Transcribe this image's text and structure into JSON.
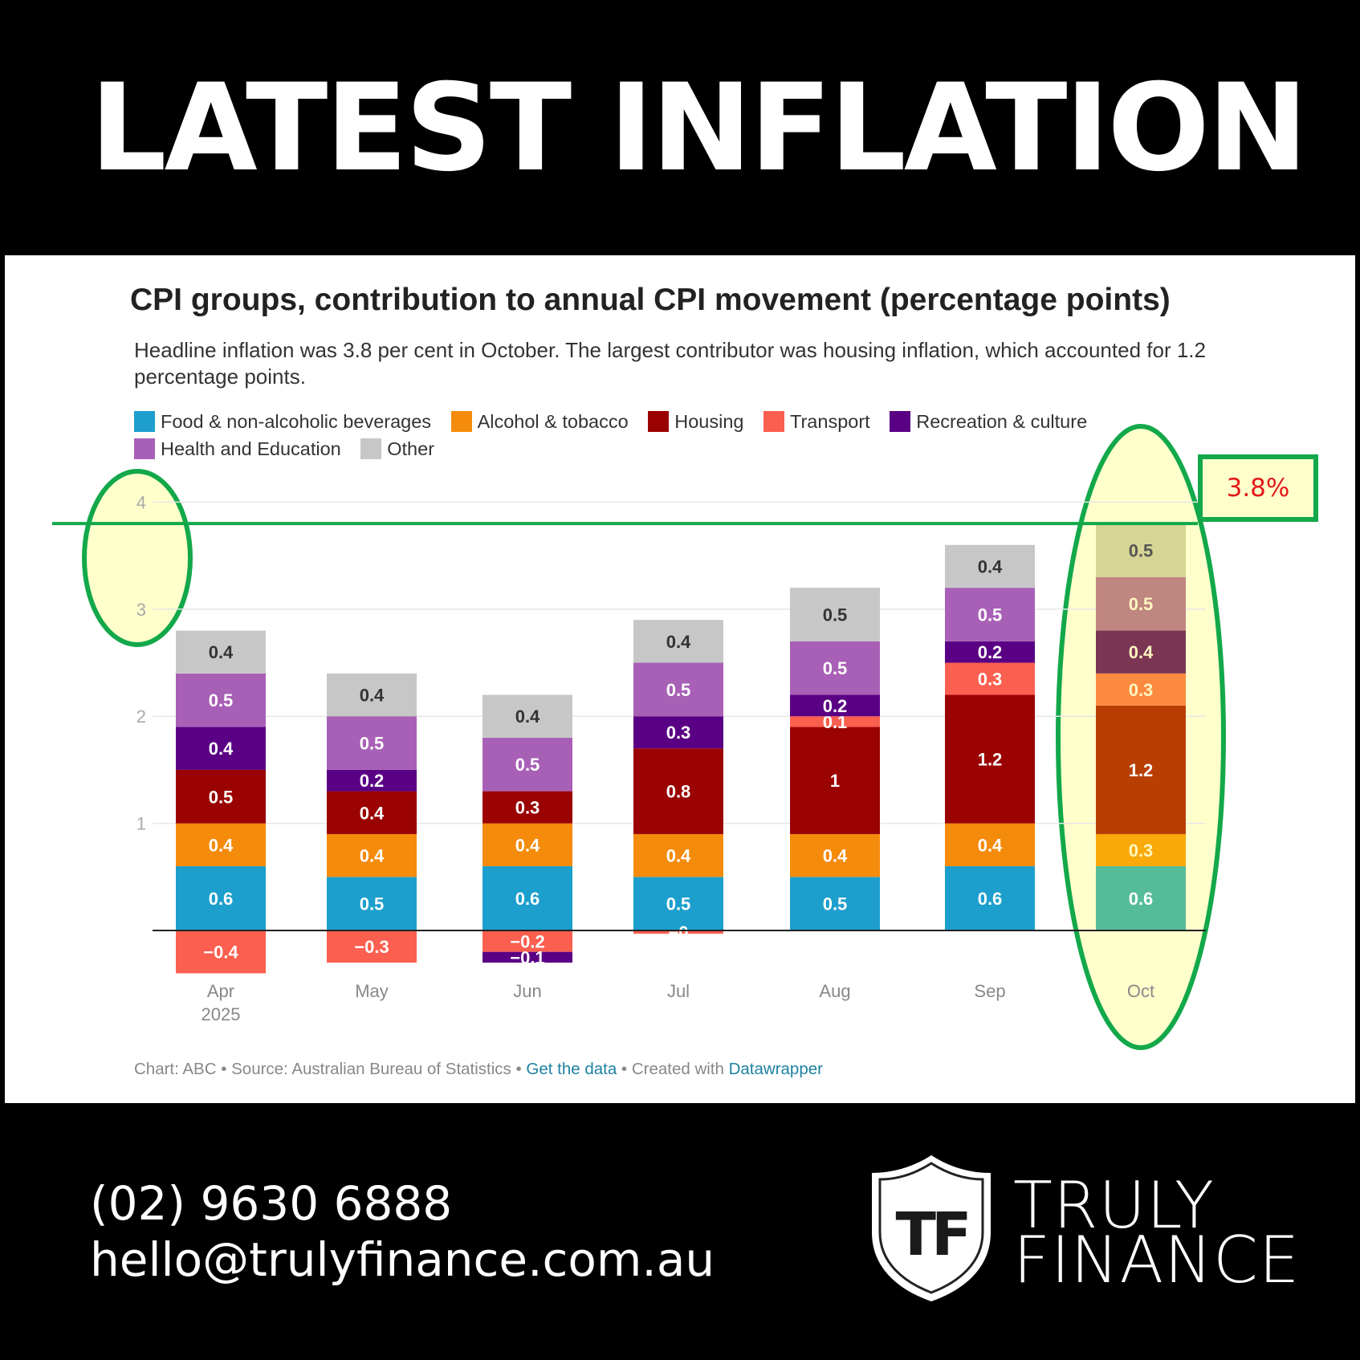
{
  "headline": "LATEST INFLATION",
  "chart_data": {
    "type": "bar",
    "stacked": true,
    "title": "CPI groups, contribution to annual CPI movement (percentage points)",
    "subtitle": "Headline inflation was 3.8 per cent in October. The largest contributor was housing inflation, which accounted for 1.2 percentage points.",
    "categories": [
      "Apr\n2025",
      "May",
      "Jun",
      "Jul",
      "Aug",
      "Sep",
      "Oct"
    ],
    "ylim": [
      -0.5,
      4
    ],
    "yticks": [
      1,
      2,
      3,
      4
    ],
    "grid": true,
    "legend_position": "top",
    "series": [
      {
        "name": "Food & non-alcoholic beverages",
        "color": "#1c9fcd",
        "values": [
          0.6,
          0.5,
          0.6,
          0.5,
          0.5,
          0.6,
          0.6
        ],
        "labels": [
          "0.6",
          "0.5",
          "0.6",
          "0.5",
          "0.5",
          "0.6",
          "0.6"
        ]
      },
      {
        "name": "Alcohol & tobacco",
        "color": "#f58b0b",
        "values": [
          0.4,
          0.4,
          0.4,
          0.4,
          0.4,
          0.4,
          0.3
        ],
        "labels": [
          "0.4",
          "0.4",
          "0.4",
          "0.4",
          "0.4",
          "0.4",
          "0.3"
        ]
      },
      {
        "name": "Housing",
        "color": "#9b0202",
        "values": [
          0.5,
          0.4,
          0.3,
          0.8,
          1.0,
          1.2,
          1.2
        ],
        "labels": [
          "0.5",
          "0.4",
          "0.3",
          "0.8",
          "1",
          "1.2",
          "1.2"
        ]
      },
      {
        "name": "Transport",
        "color": "#fb5f4f",
        "values": [
          -0.4,
          -0.3,
          -0.2,
          -0.03,
          0.1,
          0.3,
          0.3
        ],
        "labels": [
          "−0.4",
          "−0.3",
          "−0.2",
          "−0",
          "0.1",
          "0.3",
          "0.3"
        ]
      },
      {
        "name": "Recreation & culture",
        "color": "#5a0084",
        "values": [
          0.4,
          0.2,
          -0.1,
          0.3,
          0.2,
          0.2,
          0.4
        ],
        "labels": [
          "0.4",
          "0.2",
          "−0.1",
          "0.3",
          "0.2",
          "0.2",
          "0.4"
        ]
      },
      {
        "name": "Health and Education",
        "color": "#a860b6",
        "values": [
          0.5,
          0.5,
          0.5,
          0.5,
          0.5,
          0.5,
          0.5
        ],
        "labels": [
          "0.5",
          "0.5",
          "0.5",
          "0.5",
          "0.5",
          "0.5",
          "0.5"
        ]
      },
      {
        "name": "Other",
        "color": "#c7c7c7",
        "values": [
          0.4,
          0.4,
          0.4,
          0.4,
          0.5,
          0.4,
          0.5
        ],
        "labels": [
          "0.4",
          "0.4",
          "0.4",
          "0.4",
          "0.5",
          "0.4",
          "0.5"
        ]
      }
    ],
    "oct_highlight_colors": [
      "#55bc9a",
      "#f9a90a",
      "#b93e03",
      "#fb8a3f",
      "#7b3654",
      "#c08680",
      "#d6d595"
    ],
    "reference_line": {
      "value": 3.8,
      "label": "3.8%"
    }
  },
  "credits": {
    "chart": "Chart: ABC",
    "sep1": " • ",
    "source": "Source: Australian Bureau of Statistics",
    "sep2": " • ",
    "get_data": "Get the data",
    "sep3": " • ",
    "created": "Created with ",
    "datawrapper": "Datawrapper"
  },
  "contact": {
    "phone": "(02) 9630 6888",
    "email": "hello@trulyfinance.com.au"
  },
  "logo": {
    "monogram": "TF",
    "line1": "TRULY",
    "line2": "FINANCE"
  },
  "colors": {
    "background": "#000000",
    "highlight_green": "#13a84a",
    "highlight_fill": "#ffffcc",
    "callout_text": "#e31919"
  }
}
